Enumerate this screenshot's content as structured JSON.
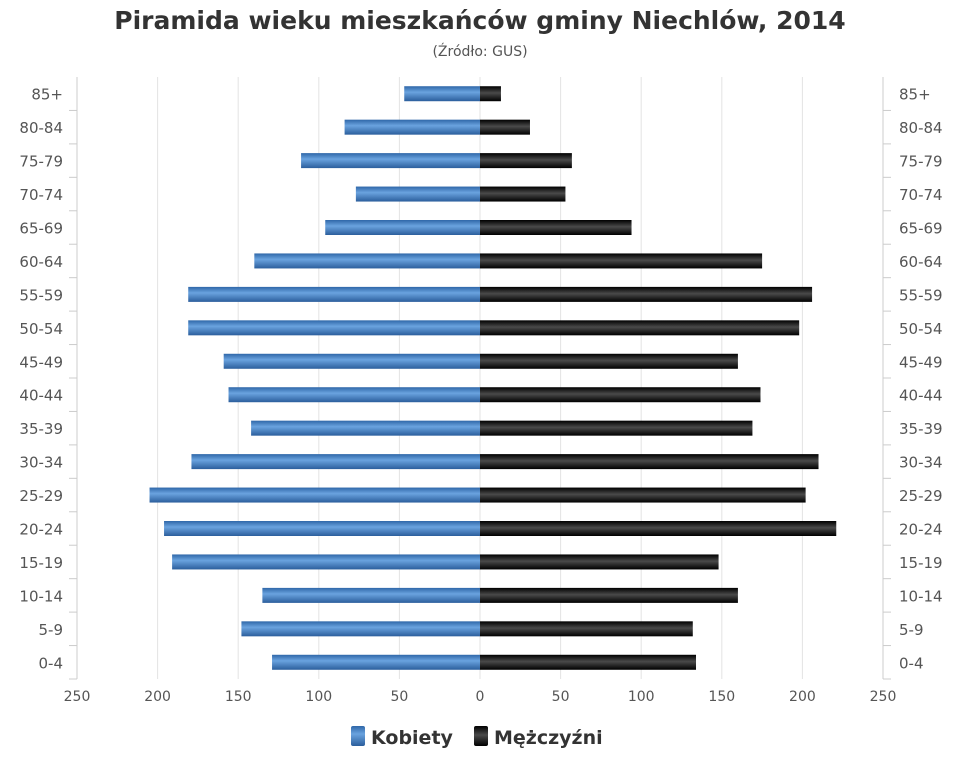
{
  "chart_data": {
    "type": "bar",
    "orientation": "horizontal",
    "layout": "population-pyramid",
    "title": "Piramida wieku mieszkańców gminy Niechlów, 2014",
    "subtitle": "(Źródło: GUS)",
    "categories": [
      "85+",
      "80-84",
      "75-79",
      "70-74",
      "65-69",
      "60-64",
      "55-59",
      "50-54",
      "45-49",
      "40-44",
      "35-39",
      "30-34",
      "25-29",
      "20-24",
      "15-19",
      "10-14",
      "5-9",
      "0-4"
    ],
    "series": [
      {
        "name": "Kobiety",
        "side": "left",
        "color": "#3f7fc0",
        "values": [
          47,
          84,
          111,
          77,
          96,
          140,
          181,
          181,
          159,
          156,
          142,
          179,
          205,
          196,
          191,
          135,
          148,
          129
        ]
      },
      {
        "name": "Mężczyźni",
        "side": "right",
        "color": "#1a1a1a",
        "values": [
          13,
          31,
          57,
          53,
          94,
          175,
          206,
          198,
          160,
          174,
          169,
          210,
          202,
          221,
          148,
          160,
          132,
          134
        ]
      }
    ],
    "x_ticks": [
      "250",
      "200",
      "150",
      "100",
      "50",
      "0",
      "50",
      "100",
      "150",
      "200",
      "250"
    ],
    "xlim": [
      -250,
      250
    ],
    "grid": true,
    "legend": "bottom"
  }
}
